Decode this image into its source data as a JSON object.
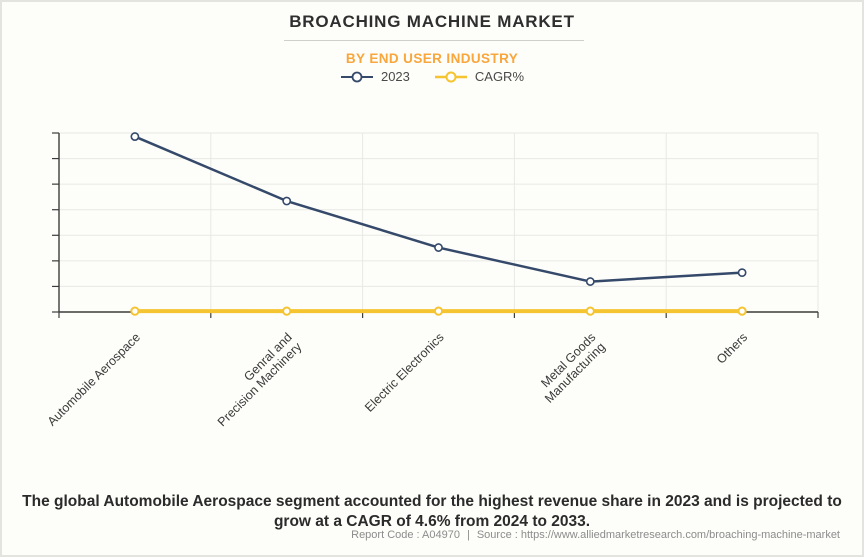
{
  "header": {
    "title": "BROACHING MACHINE MARKET",
    "subtitle": "BY END USER INDUSTRY"
  },
  "legend": [
    {
      "label": "2023",
      "color": "#35496B"
    },
    {
      "label": "CAGR%",
      "color": "#F5C431"
    }
  ],
  "chart_data": {
    "type": "line",
    "categories": [
      "Automobile Aerospace",
      "Genral and\nPrecision Machinery",
      "Electric Electronics",
      "Metal Goods\nManufacturing",
      "Others"
    ],
    "series": [
      {
        "name": "2023",
        "color": "#35496B",
        "marker": "open-circle",
        "values": [
          98,
          62,
          36,
          17,
          22
        ]
      },
      {
        "name": "CAGR%",
        "color": "#F5C431",
        "marker": "open-circle",
        "values": [
          0.5,
          0.5,
          0.5,
          0.5,
          0.5
        ]
      }
    ],
    "title": "BROACHING MACHINE MARKET",
    "subtitle": "BY END USER INDUSTRY",
    "xlabel": "",
    "ylabel": "",
    "ylim": [
      0,
      100
    ],
    "values_unit": "relative index (y-axis has tick marks but no numeric labels in source; values estimated from gridlines)",
    "grid": true,
    "x_tick_rotation": -45,
    "legend_position": "top",
    "note": "CAGR% series renders as a flat line just above the baseline; summary text states Automobile Aerospace CAGR is 4.6%."
  },
  "summary": "The global Automobile Aerospace segment accounted for the highest revenue share in 2023 and is projected to grow at a CAGR of 4.6% from 2024 to 2033.",
  "footer": {
    "report_code": "Report Code : A04970",
    "divider": "|",
    "source": "Source : https://www.alliedmarketresearch.com/broaching-machine-market"
  }
}
